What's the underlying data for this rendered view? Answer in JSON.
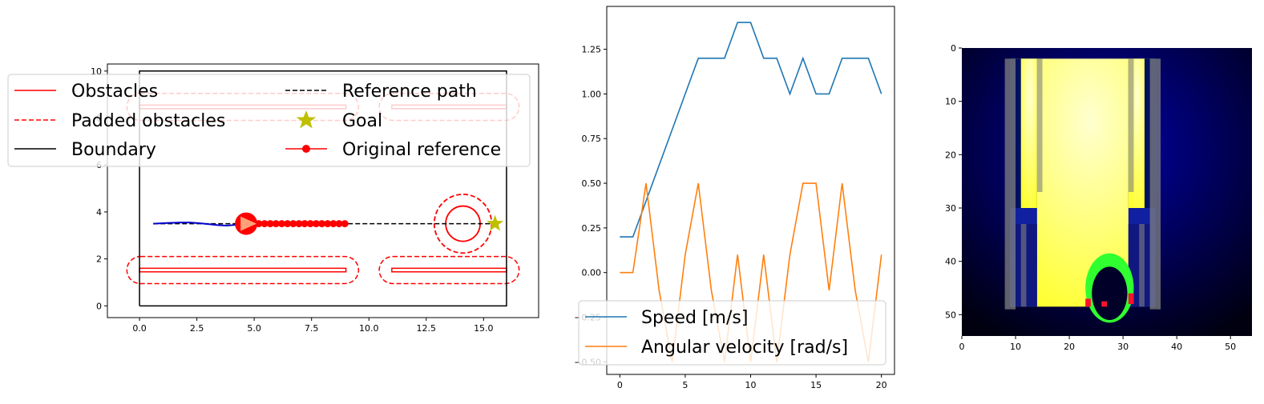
{
  "chart_data": [
    {
      "type": "line",
      "panel": "map",
      "xlim": [
        -1.4,
        17.4
      ],
      "ylim": [
        -0.5,
        10.3
      ],
      "xticks": [
        "0.0",
        "2.5",
        "5.0",
        "7.5",
        "10.0",
        "12.5",
        "15.0"
      ],
      "xtick_values": [
        0,
        2.5,
        5,
        7.5,
        10,
        12.5,
        15
      ],
      "yticks": [
        "0",
        "2",
        "4",
        "6",
        "8",
        "10"
      ],
      "ytick_values": [
        0,
        2,
        4,
        6,
        8,
        10
      ],
      "boundary": [
        [
          0,
          0
        ],
        [
          16,
          0
        ],
        [
          16,
          10
        ],
        [
          0,
          10
        ],
        [
          0,
          0
        ]
      ],
      "obstacles": [
        {
          "x": [
            0,
            9
          ],
          "y": [
            1.5,
            1.55
          ]
        },
        {
          "x": [
            11,
            16
          ],
          "y": [
            1.5,
            1.55
          ]
        },
        {
          "x": [
            0,
            9
          ],
          "y": [
            8.45,
            8.5
          ]
        },
        {
          "x": [
            11,
            16
          ],
          "y": [
            8.45,
            8.5
          ]
        }
      ],
      "padded_obstacle_radius": 0.55,
      "circle_obstacle": {
        "cx": 14.1,
        "cy": 3.5,
        "r": 0.75,
        "padded_r": 1.25
      },
      "reference_path": {
        "x": [
          0.6,
          15.5
        ],
        "y": [
          3.5,
          3.5
        ]
      },
      "goal": {
        "x": 15.5,
        "y": 3.5
      },
      "original_reference": {
        "x": [
          4.7,
          4.95,
          5.2,
          5.45,
          5.7,
          5.95,
          6.2,
          6.45,
          6.7,
          6.95,
          7.2,
          7.45,
          7.7,
          7.95,
          8.2,
          8.45,
          8.7,
          8.95
        ],
        "y": [
          3.5,
          3.5,
          3.5,
          3.5,
          3.5,
          3.5,
          3.5,
          3.5,
          3.5,
          3.5,
          3.5,
          3.5,
          3.5,
          3.5,
          3.5,
          3.5,
          3.5,
          3.5
        ]
      },
      "trajectory": {
        "x": [
          0.6,
          1.2,
          1.8,
          2.2,
          2.6,
          3.0,
          3.4,
          3.8,
          4.2,
          4.6
        ],
        "y": [
          3.5,
          3.53,
          3.55,
          3.55,
          3.52,
          3.48,
          3.44,
          3.42,
          3.45,
          3.5
        ]
      },
      "robot": {
        "x": 4.65,
        "y": 3.5
      },
      "legend": {
        "placement": "upper center",
        "entries": [
          {
            "label": "Obstacles",
            "style": "solid",
            "color": "#ff0000"
          },
          {
            "label": "Reference path",
            "style": "dashed",
            "color": "#000000"
          },
          {
            "label": "Padded obstacles",
            "style": "dashed",
            "color": "#ff0000"
          },
          {
            "label": "Goal",
            "style": "star",
            "color": "#bfbf00"
          },
          {
            "label": "Boundary",
            "style": "solid",
            "color": "#000000"
          },
          {
            "label": "Original reference",
            "style": "line-dot",
            "color": "#ff0000"
          }
        ]
      }
    },
    {
      "type": "line",
      "panel": "velocity",
      "xlim": [
        -1,
        21
      ],
      "ylim": [
        -0.57,
        1.49
      ],
      "xticks": [
        "0",
        "5",
        "10",
        "15",
        "20"
      ],
      "xtick_values": [
        0,
        5,
        10,
        15,
        20
      ],
      "yticks": [
        "−0.50",
        "−0.25",
        "0.00",
        "0.25",
        "0.50",
        "0.75",
        "1.00",
        "1.25"
      ],
      "ytick_values": [
        -0.5,
        -0.25,
        0,
        0.25,
        0.5,
        0.75,
        1.0,
        1.25
      ],
      "x": [
        0,
        1,
        2,
        3,
        4,
        5,
        6,
        7,
        8,
        9,
        10,
        11,
        12,
        13,
        14,
        15,
        16,
        17,
        18,
        19,
        20
      ],
      "series": [
        {
          "name": "Speed [m/s]",
          "color": "#1f77b4",
          "values": [
            0.2,
            0.2,
            0.4,
            0.6,
            0.8,
            1.0,
            1.2,
            1.2,
            1.2,
            1.4,
            1.4,
            1.2,
            1.2,
            1.0,
            1.2,
            1.0,
            1.0,
            1.2,
            1.2,
            1.2,
            1.0
          ]
        },
        {
          "name": "Angular velocity [rad/s]",
          "color": "#ff7f0e",
          "values": [
            0.0,
            0.0,
            0.5,
            -0.1,
            -0.5,
            0.1,
            0.5,
            -0.1,
            -0.5,
            0.1,
            -0.5,
            0.1,
            -0.5,
            0.1,
            0.5,
            0.5,
            -0.1,
            0.5,
            -0.1,
            -0.5,
            0.1
          ]
        }
      ],
      "legend": {
        "placement": "lower left"
      }
    },
    {
      "type": "heatmap",
      "panel": "image",
      "xlim": [
        0,
        54
      ],
      "ylim": [
        54,
        0
      ],
      "xticks": [
        "0",
        "10",
        "20",
        "30",
        "40",
        "50"
      ],
      "xtick_values": [
        0,
        10,
        20,
        30,
        40,
        50
      ],
      "yticks": [
        "0",
        "10",
        "20",
        "30",
        "40",
        "50"
      ],
      "ytick_values": [
        0,
        10,
        20,
        30,
        40,
        50
      ],
      "background_colors": [
        "#0000a8",
        "#000010"
      ],
      "fill_colors": [
        "#ffffd0",
        "#ffff20"
      ],
      "wall_color": "#808080",
      "ring_color": "#30ff30",
      "dot_color": "#ff1030",
      "walls": [
        [
          8,
          2,
          1,
          47
        ],
        [
          9,
          2,
          1,
          47
        ],
        [
          35,
          2,
          1,
          47
        ],
        [
          36,
          2,
          1,
          47
        ],
        [
          10,
          2,
          0,
          2
        ]
      ]
    }
  ]
}
